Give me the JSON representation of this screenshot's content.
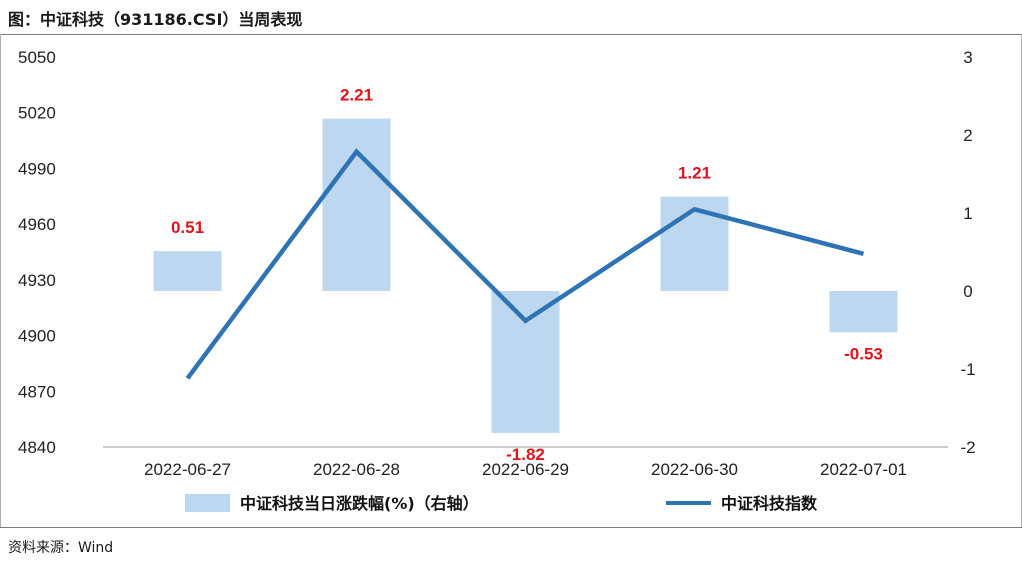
{
  "figure": {
    "title": "图：中证科技（931186.CSI）当周表现",
    "source": "资料来源：Wind"
  },
  "chart_data": {
    "type": "bar",
    "categories": [
      "2022-06-27",
      "2022-06-28",
      "2022-06-29",
      "2022-06-30",
      "2022-07-01"
    ],
    "series": [
      {
        "name": "中证科技当日涨跌幅(%)（右轴）",
        "type": "bar",
        "axis": "right",
        "values": [
          0.51,
          2.21,
          -1.82,
          1.21,
          -0.53
        ],
        "data_labels": [
          "0.51",
          "2.21",
          "-1.82",
          "1.21",
          "-0.53"
        ],
        "color": "#bcd7ef",
        "label_color": "#e0141e"
      },
      {
        "name": "中证科技指数",
        "type": "line",
        "axis": "left",
        "values": [
          4877,
          4999,
          4908,
          4968,
          4944
        ],
        "color": "#2e74b5"
      }
    ],
    "y_left": {
      "ylim": [
        4840,
        5050
      ],
      "ticks": [
        "5050",
        "5020",
        "4990",
        "4960",
        "4930",
        "4900",
        "4870",
        "4840"
      ]
    },
    "y_right": {
      "ylim": [
        -2,
        3
      ],
      "ticks": [
        "3",
        "2",
        "1",
        "0",
        "-1",
        "-2"
      ]
    },
    "grid": false,
    "legend": "bottom"
  }
}
